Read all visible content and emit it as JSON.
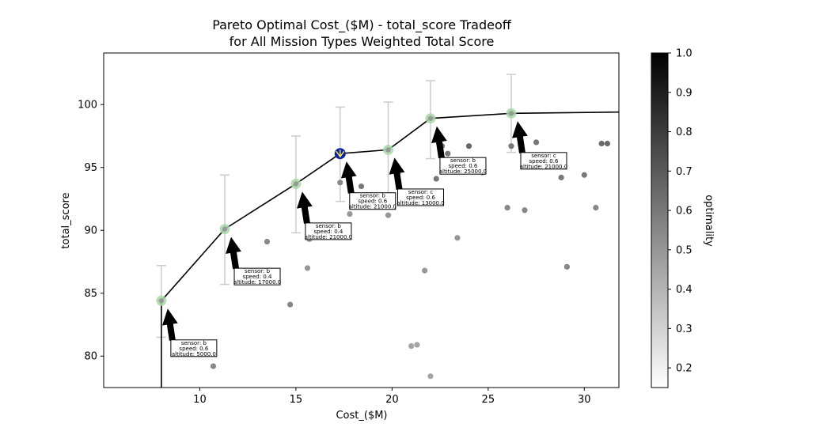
{
  "chart_data": {
    "type": "scatter",
    "title_line1": "Pareto Optimal Cost_($M) - total_score Tradeoff",
    "title_line2": "for All Mission Types Weighted Total Score",
    "xlabel": "Cost_($M)",
    "ylabel": "total_score",
    "xlim": [
      5.0,
      31.8
    ],
    "ylim": [
      77.5,
      104.1
    ],
    "xticks": [
      10,
      15,
      20,
      25,
      30
    ],
    "yticks": [
      80,
      85,
      90,
      95,
      100
    ],
    "colorbar": {
      "label": "optimality",
      "range": [
        0.15,
        1.0
      ],
      "ticks": [
        0.2,
        0.3,
        0.4,
        0.5,
        0.6,
        0.7,
        0.8,
        0.9,
        1.0
      ],
      "tick_labels": [
        "0.2",
        "0.3",
        "0.4",
        "0.5",
        "0.6",
        "0.7",
        "0.8",
        "0.9",
        "1.0"
      ]
    },
    "scatter_points": [
      {
        "x": 10.7,
        "y": 79.2,
        "v": 0.55
      },
      {
        "x": 13.5,
        "y": 89.1,
        "v": 0.55
      },
      {
        "x": 14.7,
        "y": 84.1,
        "v": 0.55
      },
      {
        "x": 15.6,
        "y": 87.0,
        "v": 0.5
      },
      {
        "x": 15.7,
        "y": 89.3,
        "v": 0.5
      },
      {
        "x": 17.3,
        "y": 93.8,
        "v": 0.55
      },
      {
        "x": 17.8,
        "y": 91.3,
        "v": 0.5
      },
      {
        "x": 18.4,
        "y": 93.5,
        "v": 0.6
      },
      {
        "x": 19.8,
        "y": 91.2,
        "v": 0.5
      },
      {
        "x": 20.3,
        "y": 94.5,
        "v": 0.55
      },
      {
        "x": 21.0,
        "y": 80.8,
        "v": 0.45
      },
      {
        "x": 21.3,
        "y": 80.9,
        "v": 0.45
      },
      {
        "x": 21.7,
        "y": 86.8,
        "v": 0.5
      },
      {
        "x": 22.0,
        "y": 78.4,
        "v": 0.45
      },
      {
        "x": 22.3,
        "y": 94.1,
        "v": 0.6
      },
      {
        "x": 22.6,
        "y": 96.7,
        "v": 0.6
      },
      {
        "x": 22.9,
        "y": 96.1,
        "v": 0.6
      },
      {
        "x": 23.4,
        "y": 89.4,
        "v": 0.5
      },
      {
        "x": 24.0,
        "y": 96.7,
        "v": 0.65
      },
      {
        "x": 24.7,
        "y": 94.6,
        "v": 0.6
      },
      {
        "x": 26.0,
        "y": 91.8,
        "v": 0.55
      },
      {
        "x": 26.2,
        "y": 96.7,
        "v": 0.6
      },
      {
        "x": 26.9,
        "y": 91.6,
        "v": 0.55
      },
      {
        "x": 27.5,
        "y": 97.0,
        "v": 0.6
      },
      {
        "x": 28.8,
        "y": 94.2,
        "v": 0.6
      },
      {
        "x": 29.1,
        "y": 87.1,
        "v": 0.55
      },
      {
        "x": 30.0,
        "y": 94.4,
        "v": 0.6
      },
      {
        "x": 30.6,
        "y": 91.8,
        "v": 0.55
      },
      {
        "x": 30.9,
        "y": 96.9,
        "v": 0.65
      },
      {
        "x": 31.2,
        "y": 96.9,
        "v": 0.65
      }
    ],
    "pareto_points": [
      {
        "x": 8.0,
        "y": 84.4,
        "err_low": 81.5,
        "err_high": 87.2,
        "label": [
          "sensor: b",
          "speed: 0.6",
          "altitude: 5000.0"
        ]
      },
      {
        "x": 11.3,
        "y": 90.1,
        "err_low": 85.7,
        "err_high": 94.4,
        "label": [
          "sensor: b",
          "speed: 0.4",
          "altitude: 17000.0"
        ]
      },
      {
        "x": 15.0,
        "y": 93.7,
        "err_low": 89.8,
        "err_high": 97.5,
        "label": [
          "sensor: b",
          "speed: 0.4",
          "altitude: 21000.0"
        ]
      },
      {
        "x": 17.3,
        "y": 96.1,
        "err_low": 92.3,
        "err_high": 99.8,
        "label": [
          "sensor: b",
          "speed: 0.6",
          "altitude: 21000.0"
        ]
      },
      {
        "x": 19.8,
        "y": 96.4,
        "err_low": 92.5,
        "err_high": 100.2,
        "label": [
          "sensor: c",
          "speed: 0.6",
          "altitude: 13000.0"
        ]
      },
      {
        "x": 22.0,
        "y": 98.9,
        "err_low": 95.7,
        "err_high": 101.9,
        "label": [
          "sensor: b",
          "speed: 0.6",
          "altitude: 25000.0"
        ]
      },
      {
        "x": 26.2,
        "y": 99.3,
        "err_low": 96.2,
        "err_high": 102.4,
        "label": [
          "sensor: c",
          "speed: 0.6",
          "altitude: 21000.0"
        ]
      }
    ],
    "pareto_front_line": [
      {
        "x": 8.0,
        "y": 77.5
      },
      {
        "x": 8.0,
        "y": 84.4
      },
      {
        "x": 11.3,
        "y": 90.1
      },
      {
        "x": 15.0,
        "y": 93.7
      },
      {
        "x": 17.3,
        "y": 96.1
      },
      {
        "x": 19.8,
        "y": 96.4
      },
      {
        "x": 22.0,
        "y": 98.9
      },
      {
        "x": 26.2,
        "y": 99.3
      },
      {
        "x": 31.8,
        "y": 99.4
      }
    ],
    "highlight_point": {
      "x": 17.3,
      "y": 96.1
    },
    "colors": {
      "pareto_marker": "#a6d8a6",
      "highlight_marker": "#0c1fa8",
      "highlight_star": "#f0e442",
      "errorbar": "#cccccc",
      "front_line": "#000000"
    }
  }
}
